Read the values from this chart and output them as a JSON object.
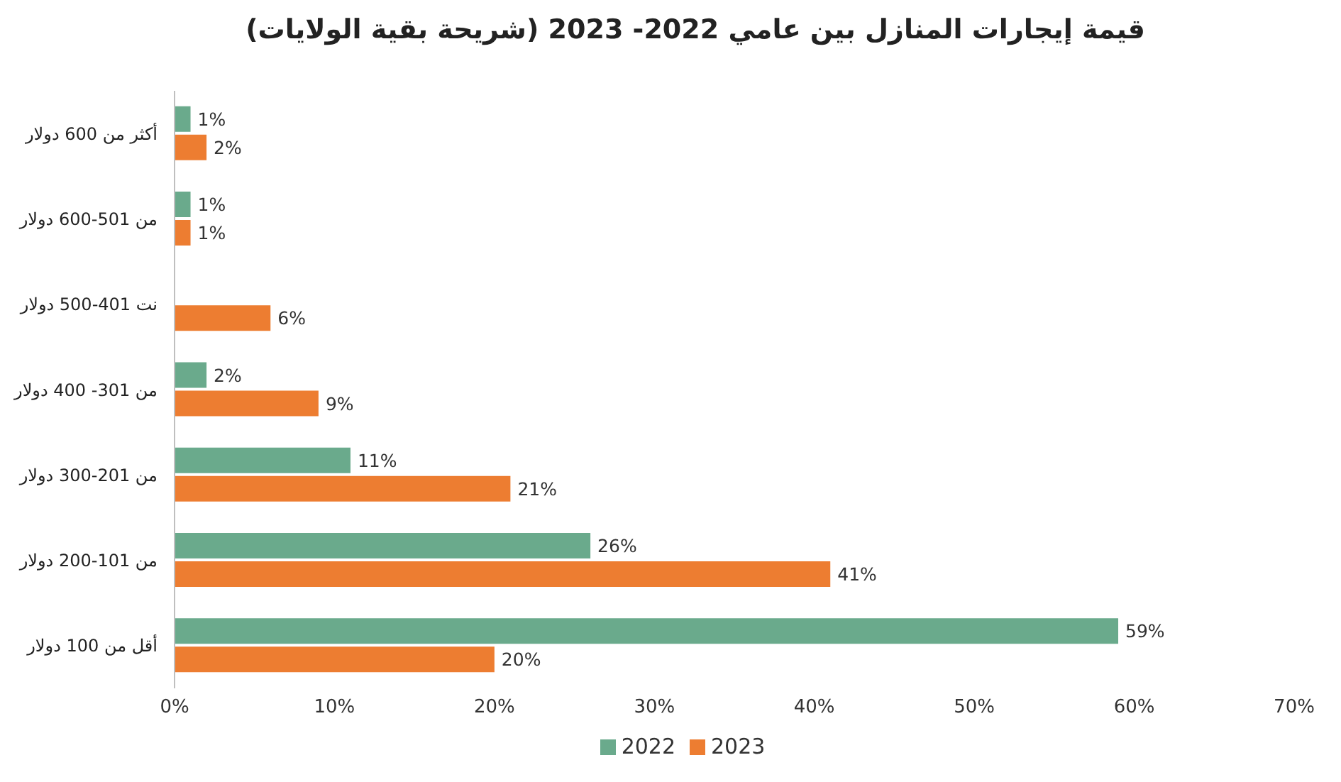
{
  "chart_data": {
    "type": "bar",
    "orientation": "horizontal",
    "title": "قيمة إيجارات المنازل بين عامي 2022- 2023 (شريحة بقية الولايات)",
    "categories": [
      "أكثر من 600 دولار",
      "من 501-600 دولار",
      "نت 401-500 دولار",
      "من 301- 400 دولار",
      "من 201-300 دولار",
      "من 101-200 دولار",
      "أقل من 100 دولار"
    ],
    "series": [
      {
        "name": "2022",
        "color": "#6aaa8c",
        "values": [
          1,
          1,
          null,
          2,
          11,
          26,
          59
        ],
        "value_labels": [
          "1%",
          "1%",
          null,
          "2%",
          "11%",
          "26%",
          "59%"
        ]
      },
      {
        "name": "2023",
        "color": "#ed7d31",
        "values": [
          2,
          1,
          6,
          9,
          21,
          41,
          20
        ],
        "value_labels": [
          "2%",
          "1%",
          "6%",
          "9%",
          "21%",
          "41%",
          "20%"
        ]
      }
    ],
    "xlim": [
      0,
      70
    ],
    "xticks": [
      {
        "value": 0,
        "label": "0%"
      },
      {
        "value": 10,
        "label": "10%"
      },
      {
        "value": 20,
        "label": "20%"
      },
      {
        "value": 30,
        "label": "30%"
      },
      {
        "value": 40,
        "label": "40%"
      },
      {
        "value": 50,
        "label": "50%"
      },
      {
        "value": 60,
        "label": "60%"
      },
      {
        "value": 70,
        "label": "70%"
      }
    ],
    "legend": "bottom"
  }
}
